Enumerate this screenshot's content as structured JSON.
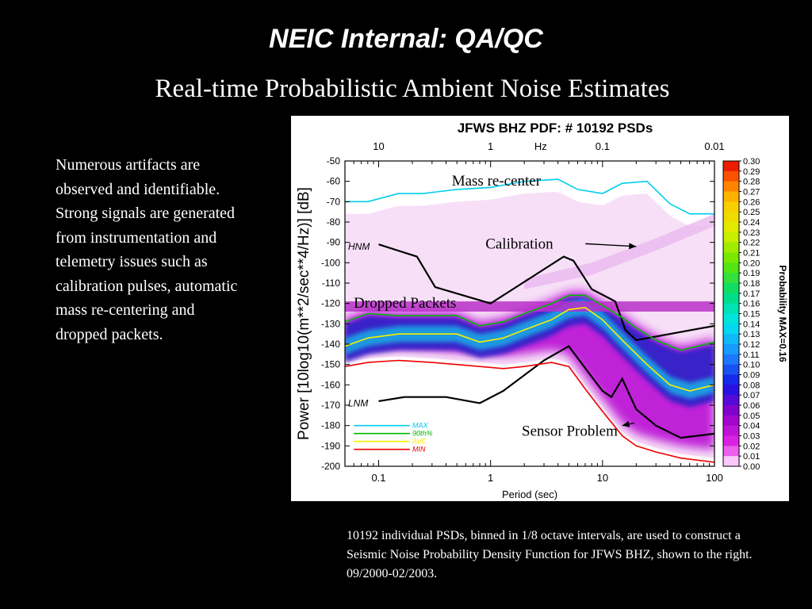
{
  "slide": {
    "title": "NEIC Internal: QA/QC",
    "subtitle": "Real-time Probabilistic Ambient Noise Estimates"
  },
  "left_text": {
    "paragraph1": "Numerous artifacts are observed and identifiable.",
    "paragraph2": "Strong signals are generated from instrumentation and telemetry issues such as calibration pulses, automatic mass re-centering and dropped packets."
  },
  "caption": "10192 individual PSDs, binned in 1/8 octave intervals, are used to construct a Seismic Noise Probability Density Function for JFWS BHZ, shown to the right. 09/2000-02/2003.",
  "chart_data": {
    "type": "heatmap",
    "title": "JFWS BHZ  PDF: # 10192 PSDs",
    "xlabel": "Period (sec)",
    "ylabel": "Power [10log10(m**2/sec**4/Hz)] [dB]",
    "x_scale": "log",
    "xlim": [
      0.05,
      100
    ],
    "ylim": [
      -200,
      -50
    ],
    "x_ticks": [
      "0.1",
      "1",
      "10",
      "100"
    ],
    "top_axis": {
      "label": "Hz",
      "ticks": [
        "10",
        "1",
        "0.1",
        "0.01"
      ],
      "values": [
        0.1,
        1,
        10,
        100
      ]
    },
    "y_ticks": [
      -50,
      -60,
      -70,
      -80,
      -90,
      -100,
      -110,
      -120,
      -130,
      -140,
      -150,
      -160,
      -170,
      -180,
      -190,
      -200
    ],
    "colorbar": {
      "label": "Probability MAX=0.16",
      "min": 0.0,
      "max": 0.3,
      "step": 0.01,
      "tick_labels": [
        "0.30",
        "0.29",
        "0.28",
        "0.27",
        "0.26",
        "0.25",
        "0.24",
        "0.23",
        "0.22",
        "0.21",
        "0.20",
        "0.19",
        "0.18",
        "0.17",
        "0.16",
        "0.15",
        "0.14",
        "0.13",
        "0.12",
        "0.11",
        "0.10",
        "0.09",
        "0.08",
        "0.07",
        "0.06",
        "0.05",
        "0.04",
        "0.03",
        "0.02",
        "0.01",
        "0.00"
      ]
    },
    "reference_models": [
      {
        "name": "HNM",
        "color": "#000000",
        "points": [
          [
            0.1,
            -91
          ],
          [
            0.22,
            -97
          ],
          [
            0.32,
            -112
          ],
          [
            1.0,
            -120
          ],
          [
            4.5,
            -97
          ],
          [
            5.5,
            -99
          ],
          [
            8,
            -113
          ],
          [
            13,
            -119
          ],
          [
            16,
            -133
          ],
          [
            20,
            -138
          ],
          [
            100,
            -131
          ]
        ]
      },
      {
        "name": "LNM",
        "color": "#000000",
        "points": [
          [
            0.1,
            -168
          ],
          [
            0.17,
            -166
          ],
          [
            0.4,
            -166
          ],
          [
            0.8,
            -169
          ],
          [
            1.3,
            -163
          ],
          [
            3,
            -148
          ],
          [
            5,
            -141
          ],
          [
            8,
            -156
          ],
          [
            10,
            -163
          ],
          [
            12,
            -166
          ],
          [
            15,
            -157
          ],
          [
            20,
            -172
          ],
          [
            30,
            -180
          ],
          [
            50,
            -186
          ],
          [
            100,
            -184
          ]
        ]
      }
    ],
    "series": [
      {
        "name": "MAX",
        "color": "#00ccee",
        "points": [
          [
            0.05,
            -70
          ],
          [
            0.08,
            -70
          ],
          [
            0.15,
            -66
          ],
          [
            0.25,
            -66
          ],
          [
            0.35,
            -65
          ],
          [
            0.5,
            -64
          ],
          [
            1,
            -63
          ],
          [
            2,
            -60
          ],
          [
            4,
            -59
          ],
          [
            6,
            -64
          ],
          [
            10,
            -66
          ],
          [
            15,
            -61
          ],
          [
            25,
            -60
          ],
          [
            40,
            -71
          ],
          [
            60,
            -76
          ],
          [
            100,
            -76
          ]
        ]
      },
      {
        "name": "90th%",
        "color": "#00bb00",
        "points": [
          [
            0.05,
            -129
          ],
          [
            0.08,
            -125
          ],
          [
            0.15,
            -126
          ],
          [
            0.3,
            -126
          ],
          [
            0.5,
            -126
          ],
          [
            0.8,
            -131
          ],
          [
            1.3,
            -129
          ],
          [
            2,
            -125
          ],
          [
            3.5,
            -120
          ],
          [
            5,
            -116
          ],
          [
            7,
            -116
          ],
          [
            10,
            -121
          ],
          [
            15,
            -127
          ],
          [
            20,
            -132
          ],
          [
            30,
            -138
          ],
          [
            50,
            -143
          ],
          [
            100,
            -139
          ]
        ]
      },
      {
        "name": "AVE",
        "color": "#ffee00",
        "points": [
          [
            0.05,
            -141
          ],
          [
            0.08,
            -137
          ],
          [
            0.15,
            -135
          ],
          [
            0.3,
            -135
          ],
          [
            0.5,
            -135
          ],
          [
            0.8,
            -139
          ],
          [
            1.3,
            -137
          ],
          [
            2,
            -133
          ],
          [
            3.5,
            -128
          ],
          [
            5,
            -123
          ],
          [
            7,
            -122
          ],
          [
            10,
            -128
          ],
          [
            15,
            -138
          ],
          [
            25,
            -150
          ],
          [
            40,
            -160
          ],
          [
            60,
            -163
          ],
          [
            100,
            -160
          ]
        ]
      },
      {
        "name": "MIN",
        "color": "#ee0000",
        "points": [
          [
            0.05,
            -151
          ],
          [
            0.08,
            -149
          ],
          [
            0.15,
            -148
          ],
          [
            0.3,
            -149
          ],
          [
            0.5,
            -150
          ],
          [
            0.8,
            -151
          ],
          [
            1.3,
            -152
          ],
          [
            2,
            -151
          ],
          [
            3.5,
            -149
          ],
          [
            5,
            -151
          ],
          [
            7,
            -162
          ],
          [
            10,
            -173
          ],
          [
            15,
            -185
          ],
          [
            20,
            -190
          ],
          [
            30,
            -193
          ],
          [
            50,
            -196
          ],
          [
            100,
            -198
          ]
        ]
      }
    ],
    "legend": {
      "placement": "bottom-left",
      "entries": [
        {
          "name": "MAX",
          "color": "#00ccee"
        },
        {
          "name": "90th%",
          "color": "#00bb00"
        },
        {
          "name": "AVE",
          "color": "#ffee00"
        },
        {
          "name": "MIN",
          "color": "#ee0000"
        }
      ]
    },
    "annotations": [
      {
        "text": "Mass re-center",
        "x": 0.45,
        "y": -62
      },
      {
        "text": "Calibration",
        "x": 0.9,
        "y": -93,
        "arrow_to": [
          20,
          -92
        ]
      },
      {
        "text": "Dropped Packets",
        "x": 0.06,
        "y": -122
      },
      {
        "text": "Sensor Problem",
        "x": 1.9,
        "y": -185,
        "arrow_to": [
          15,
          -180
        ]
      }
    ]
  },
  "colors": {
    "background": "#000000",
    "chart_background": "#ffffff",
    "text": "#ffffff"
  }
}
